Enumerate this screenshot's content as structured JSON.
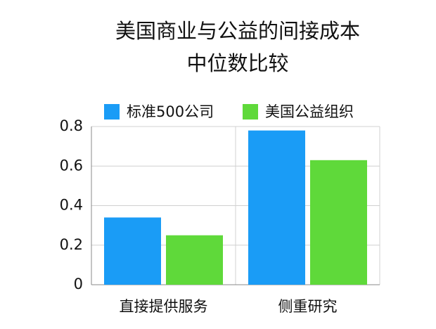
{
  "chart_data": {
    "type": "bar",
    "title": [
      "美国商业与公益的间接成本",
      "中位数比较"
    ],
    "categories": [
      "直接提供服务",
      "侧重研究"
    ],
    "series": [
      {
        "name": "标准500公司",
        "color": "#1a9cf6",
        "values": [
          0.34,
          0.78
        ]
      },
      {
        "name": "美国公益组织",
        "color": "#5fd93a",
        "values": [
          0.25,
          0.63
        ]
      }
    ],
    "ylim": [
      0,
      0.8
    ],
    "yticks": [
      0,
      0.2,
      0.4,
      0.6,
      0.8
    ],
    "grid": true
  }
}
